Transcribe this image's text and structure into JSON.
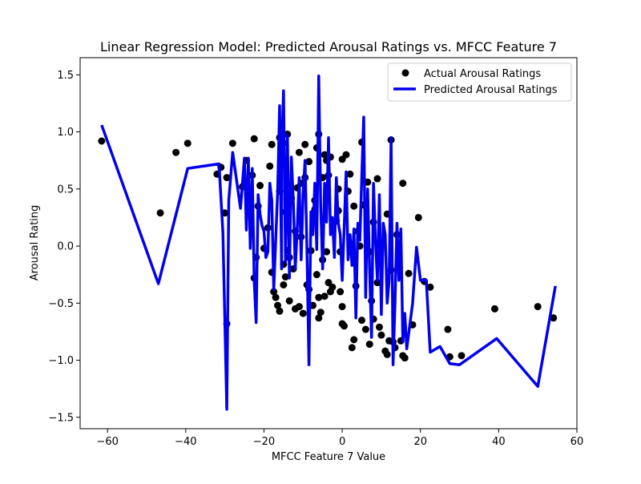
{
  "chart_data": {
    "type": "scatter",
    "title": "Linear Regression Model: Predicted Arousal Ratings vs. MFCC Feature 7",
    "xlabel": "MFCC Feature 7 Value",
    "ylabel": "Arousal Rating",
    "xlim": [
      -67,
      60
    ],
    "ylim": [
      -1.6,
      1.65
    ],
    "xticks": [
      -60,
      -40,
      -20,
      0,
      20,
      40,
      60
    ],
    "yticks": [
      -1.5,
      -1.0,
      -0.5,
      0.0,
      0.5,
      1.0,
      1.5
    ],
    "xtick_labels": [
      "−60",
      "−40",
      "−20",
      "0",
      "20",
      "40",
      "60"
    ],
    "ytick_labels": [
      "−1.5",
      "−1.0",
      "−0.5",
      "0.0",
      "0.5",
      "1.0",
      "1.5"
    ],
    "grid": false,
    "legend_position": "top-right",
    "series": [
      {
        "name": "Actual Arousal Ratings",
        "type": "scatter",
        "color": "#000000",
        "points": [
          [
            -61.5,
            0.92
          ],
          [
            -46.5,
            0.29
          ],
          [
            -42.5,
            0.82
          ],
          [
            -39.5,
            0.9
          ],
          [
            -32,
            0.63
          ],
          [
            -31,
            0.69
          ],
          [
            -30,
            0.29
          ],
          [
            -29.5,
            -0.68
          ],
          [
            -29.5,
            0.6
          ],
          [
            -28,
            0.9
          ],
          [
            -25.5,
            0.52
          ],
          [
            -24.5,
            0.75
          ],
          [
            -23,
            0.62
          ],
          [
            -22.5,
            0.94
          ],
          [
            -22.5,
            -0.28
          ],
          [
            -22,
            -0.1
          ],
          [
            -21.5,
            0.35
          ],
          [
            -21,
            0.53
          ],
          [
            -20,
            -0.02
          ],
          [
            -19,
            0.16
          ],
          [
            -18.5,
            0.7
          ],
          [
            -18,
            0.89
          ],
          [
            -18,
            -0.23
          ],
          [
            -17.5,
            -0.4
          ],
          [
            -17,
            -0.45
          ],
          [
            -16.5,
            -0.52
          ],
          [
            -16,
            0.95
          ],
          [
            -16,
            0.48
          ],
          [
            -16,
            -0.57
          ],
          [
            -15.5,
            0.82
          ],
          [
            -15,
            0.9
          ],
          [
            -15,
            -0.16
          ],
          [
            -15,
            -0.34
          ],
          [
            -14.5,
            0.3
          ],
          [
            -14.5,
            -0.27
          ],
          [
            -14,
            0.98
          ],
          [
            -14,
            -0.04
          ],
          [
            -13.5,
            -0.1
          ],
          [
            -13.5,
            -0.48
          ],
          [
            -13,
            0.42
          ],
          [
            -12.5,
            -0.2
          ],
          [
            -12,
            0.13
          ],
          [
            -12,
            -0.55
          ],
          [
            -11.5,
            0.51
          ],
          [
            -11,
            0.82
          ],
          [
            -11,
            -0.53
          ],
          [
            -10.5,
            0.55
          ],
          [
            -10.5,
            0.08
          ],
          [
            -10,
            -0.59
          ],
          [
            -9.5,
            0.89
          ],
          [
            -9.5,
            0.6
          ],
          [
            -9,
            -0.34
          ],
          [
            -8.5,
            0.74
          ],
          [
            -8.5,
            -0.38
          ],
          [
            -8,
            -0.04
          ],
          [
            -7.5,
            -0.52
          ],
          [
            -7,
            0.4
          ],
          [
            -7,
            0.32
          ],
          [
            -6.5,
            0.86
          ],
          [
            -6.5,
            -0.25
          ],
          [
            -6,
            0.98
          ],
          [
            -6,
            -0.45
          ],
          [
            -6,
            -0.63
          ],
          [
            -5.5,
            -0.58
          ],
          [
            -5,
            0.6
          ],
          [
            -5,
            -0.12
          ],
          [
            -4.5,
            0.8
          ],
          [
            -4.5,
            -0.44
          ],
          [
            -4,
            0.75
          ],
          [
            -4,
            -0.05
          ],
          [
            -3.5,
            0.62
          ],
          [
            -3.5,
            -0.32
          ],
          [
            -3,
            0.78
          ],
          [
            -3,
            -0.4
          ],
          [
            -2.5,
            -0.36
          ],
          [
            -1.5,
            0.22
          ],
          [
            -1,
            0.5
          ],
          [
            -1,
            0.31
          ],
          [
            -0.5,
            -0.05
          ],
          [
            -0.5,
            -0.4
          ],
          [
            0,
            -0.53
          ],
          [
            0,
            0.76
          ],
          [
            0,
            -0.68
          ],
          [
            0.5,
            -0.7
          ],
          [
            1,
            0.8
          ],
          [
            1.5,
            0.48
          ],
          [
            2,
            0.63
          ],
          [
            2,
            -0.04
          ],
          [
            2.5,
            -0.89
          ],
          [
            3,
            0.35
          ],
          [
            3,
            -0.82
          ],
          [
            3.5,
            -0.35
          ],
          [
            4,
            0.13
          ],
          [
            4.5,
            0.0
          ],
          [
            5,
            0.91
          ],
          [
            5,
            -0.65
          ],
          [
            5.5,
            0.36
          ],
          [
            6,
            -0.73
          ],
          [
            6.5,
            0.56
          ],
          [
            7,
            -0.05
          ],
          [
            7,
            -0.86
          ],
          [
            7.5,
            -0.48
          ],
          [
            8,
            0.21
          ],
          [
            8,
            -0.64
          ],
          [
            9,
            0.59
          ],
          [
            9,
            -0.32
          ],
          [
            9.5,
            -0.71
          ],
          [
            10,
            -0.78
          ],
          [
            11,
            -0.92
          ],
          [
            11.5,
            0.28
          ],
          [
            11.5,
            -0.95
          ],
          [
            12,
            -0.83
          ],
          [
            12.5,
            0.93
          ],
          [
            12.5,
            -0.21
          ],
          [
            13,
            -0.84
          ],
          [
            13.5,
            -0.89
          ],
          [
            14,
            0.1
          ],
          [
            14.5,
            -0.2
          ],
          [
            15,
            -0.83
          ],
          [
            15.5,
            0.55
          ],
          [
            15.5,
            -0.96
          ],
          [
            16,
            -0.98
          ],
          [
            17,
            -0.24
          ],
          [
            18,
            -0.69
          ],
          [
            19.5,
            0.25
          ],
          [
            21,
            -0.31
          ],
          [
            22.5,
            -0.36
          ],
          [
            27,
            -0.73
          ],
          [
            27.5,
            -0.97
          ],
          [
            30.5,
            -0.96
          ],
          [
            39,
            -0.55
          ],
          [
            50,
            -0.53
          ],
          [
            54,
            -0.63
          ]
        ]
      },
      {
        "name": "Predicted Arousal Ratings",
        "type": "line",
        "color": "#0000ee",
        "points": [
          [
            -61.5,
            1.06
          ],
          [
            -47,
            -0.33
          ],
          [
            -39.5,
            0.68
          ],
          [
            -31.5,
            0.72
          ],
          [
            -30.5,
            0.12
          ],
          [
            -29.5,
            -1.43
          ],
          [
            -29,
            0.4
          ],
          [
            -28,
            0.82
          ],
          [
            -26,
            0.33
          ],
          [
            -25,
            0.77
          ],
          [
            -24.5,
            0.14
          ],
          [
            -24,
            0.77
          ],
          [
            -23.5,
            -0.02
          ],
          [
            -23,
            0.68
          ],
          [
            -22.5,
            -0.3
          ],
          [
            -22,
            -0.67
          ],
          [
            -21.5,
            0.45
          ],
          [
            -21,
            0.28
          ],
          [
            -20.5,
            0.18
          ],
          [
            -20,
            0.13
          ],
          [
            -19.5,
            -0.1
          ],
          [
            -19,
            -0.05
          ],
          [
            -18.5,
            0.55
          ],
          [
            -18,
            0.4
          ],
          [
            -17.5,
            -0.38
          ],
          [
            -17,
            0.05
          ],
          [
            -16.5,
            0.48
          ],
          [
            -16,
            1.23
          ],
          [
            -15.5,
            -0.2
          ],
          [
            -15.5,
            0.78
          ],
          [
            -15,
            1.36
          ],
          [
            -14.5,
            -0.14
          ],
          [
            -14,
            0.97
          ],
          [
            -13.5,
            -0.28
          ],
          [
            -13,
            0.78
          ],
          [
            -12.5,
            0.4
          ],
          [
            -12,
            -0.2
          ],
          [
            -11.5,
            0.15
          ],
          [
            -11,
            0.6
          ],
          [
            -10.5,
            -0.12
          ],
          [
            -10,
            0.45
          ],
          [
            -9.5,
            0.75
          ],
          [
            -9,
            -0.06
          ],
          [
            -8.5,
            -1.04
          ],
          [
            -8,
            0.3
          ],
          [
            -7.5,
            0.1
          ],
          [
            -7,
            0.55
          ],
          [
            -6.5,
            -0.03
          ],
          [
            -6,
            1.49
          ],
          [
            -5.5,
            0.35
          ],
          [
            -5,
            -0.2
          ],
          [
            -4.5,
            0.55
          ],
          [
            -4,
            0.21
          ],
          [
            -3.5,
            0.95
          ],
          [
            -3,
            0.1
          ],
          [
            -2.5,
            0.25
          ],
          [
            -2,
            -0.1
          ],
          [
            -1.5,
            0.6
          ],
          [
            -1,
            0.2
          ],
          [
            -0.5,
            0.1
          ],
          [
            0,
            -0.3
          ],
          [
            0.5,
            0.15
          ],
          [
            1,
            0.65
          ],
          [
            1.5,
            -0.12
          ],
          [
            2,
            0.1
          ],
          [
            2.5,
            -0.17
          ],
          [
            3,
            0.15
          ],
          [
            3.5,
            -0.63
          ],
          [
            4,
            0.2
          ],
          [
            4.5,
            0.05
          ],
          [
            5,
            0.6
          ],
          [
            5.5,
            1.13
          ],
          [
            6,
            -0.45
          ],
          [
            6.5,
            0.5
          ],
          [
            7,
            -0.2
          ],
          [
            7.5,
            -0.8
          ],
          [
            8,
            0.55
          ],
          [
            8.5,
            0.05
          ],
          [
            9,
            -0.3
          ],
          [
            9.5,
            0.45
          ],
          [
            10,
            -0.6
          ],
          [
            10.5,
            0.2
          ],
          [
            11,
            0.1
          ],
          [
            11.5,
            -0.5
          ],
          [
            12,
            -0.3
          ],
          [
            12.5,
            0.95
          ],
          [
            13,
            -1.04
          ],
          [
            13.5,
            -0.5
          ],
          [
            14,
            0.2
          ],
          [
            14.5,
            -0.3
          ],
          [
            15,
            0.15
          ],
          [
            15.5,
            -0.84
          ],
          [
            16,
            -0.59
          ],
          [
            16.5,
            -0.9
          ],
          [
            18,
            -0.5
          ],
          [
            19,
            -0.01
          ],
          [
            20,
            -0.3
          ],
          [
            21.5,
            -0.3
          ],
          [
            22.5,
            -0.93
          ],
          [
            25,
            -0.88
          ],
          [
            27.5,
            -1.03
          ],
          [
            30,
            -1.04
          ],
          [
            39.5,
            -0.81
          ],
          [
            50,
            -1.23
          ],
          [
            54.5,
            -0.35
          ]
        ]
      }
    ]
  }
}
